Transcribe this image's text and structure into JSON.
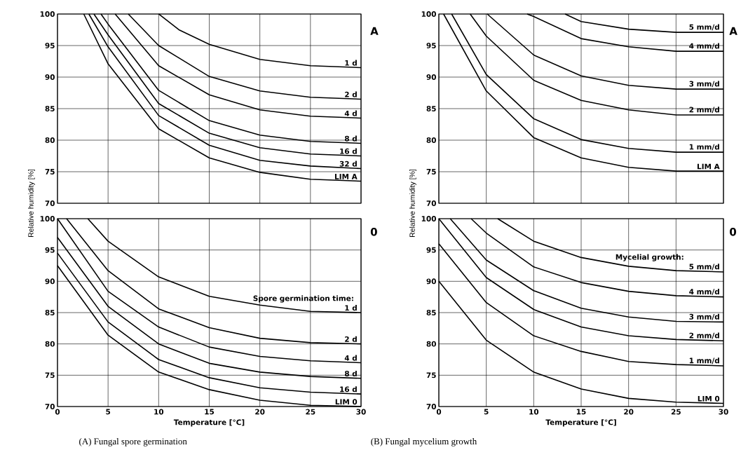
{
  "chart_data": [
    {
      "type": "line",
      "ylabel": "Relative humidity [%]",
      "xlim": [
        0,
        30
      ],
      "ylim": [
        70,
        100
      ],
      "xticks": [
        0,
        5,
        10,
        15,
        20,
        25,
        30
      ],
      "yticks": [
        70,
        75,
        80,
        85,
        90,
        95,
        100
      ],
      "grid": true,
      "marker": "none",
      "line_style": "solid",
      "tick_labels": "y",
      "annotations": [
        "A"
      ],
      "series": [
        {
          "name": "1 d",
          "color": "#000000",
          "x": [
            10,
            12,
            15,
            20,
            25,
            30
          ],
          "values": [
            100,
            97.5,
            95.2,
            92.8,
            91.8,
            91.5
          ]
        },
        {
          "name": "2 d",
          "color": "#000000",
          "x": [
            7,
            10,
            15,
            20,
            25,
            30
          ],
          "values": [
            100,
            95,
            90.1,
            87.8,
            86.8,
            86.5
          ]
        },
        {
          "name": "4 d",
          "color": "#000000",
          "x": [
            5.7,
            10,
            15,
            20,
            25,
            30
          ],
          "values": [
            100,
            91.8,
            87.2,
            84.8,
            83.8,
            83.5
          ]
        },
        {
          "name": "8 d",
          "color": "#000000",
          "x": [
            4.3,
            5,
            10,
            15,
            20,
            25,
            30
          ],
          "values": [
            100,
            98.4,
            87.9,
            83.1,
            80.8,
            79.8,
            79.5
          ]
        },
        {
          "name": "16 d",
          "color": "#000000",
          "x": [
            3.6,
            5,
            10,
            15,
            20,
            25,
            30
          ],
          "values": [
            100,
            96.7,
            85.8,
            81.1,
            78.8,
            77.8,
            77.5
          ]
        },
        {
          "name": "32 d",
          "color": "#000000",
          "x": [
            3.1,
            5,
            10,
            15,
            20,
            25,
            30
          ],
          "values": [
            100,
            94.8,
            83.9,
            79.2,
            76.8,
            75.9,
            75.5
          ]
        },
        {
          "name": "LIM A",
          "color": "#000000",
          "x": [
            2.6,
            5,
            10,
            15,
            20,
            25,
            30
          ],
          "values": [
            100,
            92.1,
            81.8,
            77.2,
            74.9,
            73.8,
            73.5
          ]
        }
      ]
    },
    {
      "type": "line",
      "xlabel": "Temperature [°C]",
      "xlim": [
        0,
        30
      ],
      "ylim": [
        70,
        100
      ],
      "xticks": [
        0,
        5,
        10,
        15,
        20,
        25,
        30
      ],
      "yticks": [
        70,
        75,
        80,
        85,
        90,
        95,
        100
      ],
      "grid": true,
      "marker": "none",
      "line_style": "solid",
      "legend_title": "Spore germination time:",
      "annotations": [
        "0",
        "(A) Fungal spore germination"
      ],
      "series": [
        {
          "name": "1 d",
          "color": "#000000",
          "x": [
            3,
            5,
            10,
            15,
            20,
            25,
            30
          ],
          "values": [
            100,
            96.4,
            90.7,
            87.6,
            86.2,
            85.2,
            85
          ]
        },
        {
          "name": "2 d",
          "color": "#000000",
          "x": [
            0.9,
            5,
            10,
            15,
            20,
            25,
            30
          ],
          "values": [
            100,
            91.7,
            85.6,
            82.6,
            80.9,
            80.2,
            80
          ]
        },
        {
          "name": "4 d",
          "color": "#000000",
          "x": [
            0,
            5,
            10,
            15,
            20,
            25,
            30
          ],
          "values": [
            100,
            88.4,
            82.7,
            79.5,
            78,
            77.3,
            77
          ]
        },
        {
          "name": "8 d",
          "color": "#000000",
          "x": [
            0,
            5,
            10,
            15,
            20,
            25,
            30
          ],
          "values": [
            97,
            86,
            80,
            76.9,
            75.5,
            74.8,
            74.5
          ]
        },
        {
          "name": "16 d",
          "color": "#000000",
          "x": [
            0,
            5,
            10,
            15,
            20,
            25,
            30
          ],
          "values": [
            94.5,
            83.5,
            77.5,
            74.6,
            73,
            72.3,
            72
          ]
        },
        {
          "name": "LIM 0",
          "color": "#000000",
          "x": [
            0,
            5,
            10,
            15,
            20,
            25,
            30
          ],
          "values": [
            92.5,
            81.4,
            75.5,
            72.7,
            71,
            70.2,
            70
          ]
        }
      ]
    },
    {
      "type": "line",
      "ylabel": "Relative humidity [%]",
      "xlim": [
        0,
        30
      ],
      "ylim": [
        70,
        100
      ],
      "xticks": [
        0,
        5,
        10,
        15,
        20,
        25,
        30
      ],
      "yticks": [
        70,
        75,
        80,
        85,
        90,
        95,
        100
      ],
      "grid": true,
      "marker": "none",
      "line_style": "solid",
      "tick_labels": "y",
      "annotations": [
        "A"
      ],
      "series": [
        {
          "name": "5 mm/d",
          "color": "#000000",
          "x": [
            13.3,
            15,
            20,
            25,
            30
          ],
          "values": [
            100,
            98.8,
            97.6,
            97.1,
            97.1
          ]
        },
        {
          "name": "4 mm/d",
          "color": "#000000",
          "x": [
            9.3,
            10,
            15,
            20,
            25,
            30
          ],
          "values": [
            100,
            99.6,
            96.1,
            94.8,
            94.1,
            94.1
          ]
        },
        {
          "name": "3 mm/d",
          "color": "#000000",
          "x": [
            5.1,
            10,
            15,
            20,
            25,
            30
          ],
          "values": [
            100,
            93.5,
            90.2,
            88.7,
            88.1,
            88.1
          ]
        },
        {
          "name": "2 mm/d",
          "color": "#000000",
          "x": [
            3.3,
            5,
            10,
            15,
            20,
            25,
            30
          ],
          "values": [
            100,
            96.5,
            89.5,
            86.3,
            84.8,
            84,
            84
          ]
        },
        {
          "name": "1 mm/d",
          "color": "#000000",
          "x": [
            1.35,
            5,
            10,
            15,
            20,
            25,
            30
          ],
          "values": [
            100,
            90.4,
            83.4,
            80.1,
            78.7,
            78.1,
            78.1
          ]
        },
        {
          "name": "LIM A",
          "color": "#000000",
          "x": [
            0.5,
            5,
            10,
            15,
            20,
            25,
            30
          ],
          "values": [
            100,
            87.8,
            80.4,
            77.2,
            75.7,
            75.1,
            75.1
          ]
        }
      ]
    },
    {
      "type": "line",
      "xlabel": "Temperature [°C]",
      "xlim": [
        0,
        30
      ],
      "ylim": [
        70,
        100
      ],
      "xticks": [
        0,
        5,
        10,
        15,
        20,
        25,
        30
      ],
      "yticks": [
        70,
        75,
        80,
        85,
        90,
        95,
        100
      ],
      "grid": true,
      "marker": "none",
      "line_style": "solid",
      "legend_title": "Mycelial growth:",
      "annotations": [
        "0",
        "(B) Fungal mycelium growth"
      ],
      "series": [
        {
          "name": "5 mm/d",
          "color": "#000000",
          "x": [
            6.2,
            10,
            15,
            20,
            25,
            30
          ],
          "values": [
            100,
            96.4,
            93.8,
            92.4,
            91.7,
            91.5
          ]
        },
        {
          "name": "4 mm/d",
          "color": "#000000",
          "x": [
            3.4,
            5,
            10,
            15,
            20,
            25,
            30
          ],
          "values": [
            100,
            97.7,
            92.3,
            89.8,
            88.4,
            87.7,
            87.5
          ]
        },
        {
          "name": "3 mm/d",
          "color": "#000000",
          "x": [
            1.2,
            5,
            10,
            15,
            20,
            25,
            30
          ],
          "values": [
            100,
            93.4,
            88.5,
            85.7,
            84.3,
            83.6,
            83.5
          ]
        },
        {
          "name": "2 mm/d",
          "color": "#000000",
          "x": [
            0,
            5,
            10,
            15,
            20,
            25,
            30
          ],
          "values": [
            100,
            90.6,
            85.5,
            82.7,
            81.3,
            80.7,
            80.5
          ]
        },
        {
          "name": "1 mm/d",
          "color": "#000000",
          "x": [
            0,
            5,
            10,
            15,
            20,
            25,
            30
          ],
          "values": [
            96,
            86.6,
            81.3,
            78.8,
            77.2,
            76.7,
            76.5
          ]
        },
        {
          "name": "LIM 0",
          "color": "#000000",
          "x": [
            0,
            5,
            10,
            15,
            20,
            25,
            30
          ],
          "values": [
            90,
            80.6,
            75.5,
            72.8,
            71.3,
            70.7,
            70.5
          ]
        }
      ]
    }
  ]
}
